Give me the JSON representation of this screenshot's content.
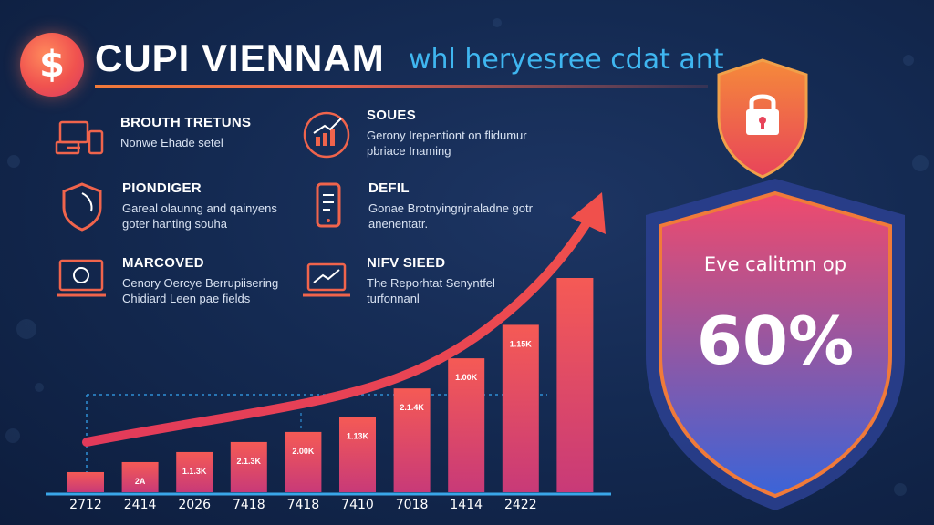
{
  "header": {
    "logo_symbol": "$",
    "logo_icon": "dollar-coin-icon",
    "title": "CUPI VIENNAM",
    "subtitle": "whl heryesree cdat ant"
  },
  "features": [
    {
      "icon": "devices-icon",
      "title": "BROUTH TRETUNS",
      "desc": "Nonwe Ehade setel"
    },
    {
      "icon": "growth-chart-icon",
      "title": "SOUES",
      "desc": "Gerony Irepentiont on flidumur pbriace Inaming"
    },
    {
      "icon": "shield-outline-icon",
      "title": "PIONDIGER",
      "desc": "Gareal olaunng and qainyens goter hanting souha"
    },
    {
      "icon": "mobile-phone-icon",
      "title": "DEFIL",
      "desc": "Gonae Brotnyingnjnaladne gotr anenentatr."
    },
    {
      "icon": "secure-laptop-icon",
      "title": "MARCOVED",
      "desc": "Cenory Oercye Berrupiisering Chidiard Leen pae fields"
    },
    {
      "icon": "laptop-chart-icon",
      "title": "NIFV SIEED",
      "desc": "The Reporhtat Senyntfel turfonnanl"
    }
  ],
  "chart_data": {
    "type": "bar",
    "categories": [
      "2712",
      "2414",
      "2026",
      "7418",
      "7418",
      "7410",
      "7018",
      "1414",
      "2422",
      ""
    ],
    "values": [
      12,
      18,
      24,
      30,
      36,
      45,
      62,
      80,
      100,
      128
    ],
    "bar_labels": [
      "",
      "2A",
      "1.1.3K",
      "2.1.3K",
      "2.00K",
      "1.13K",
      "2.1.4K",
      "1.00K",
      "1.15K",
      ""
    ],
    "trend": "rising",
    "colors": {
      "bar_top": "#f55a55",
      "bar_bottom": "#c83a78",
      "arrow": "#f0504c",
      "axis": "#3aa6e8",
      "guide": "#2f8fd6"
    }
  },
  "shield": {
    "caption": "Eve calitmn op",
    "value": "60%",
    "lock_icon": "padlock-icon",
    "colors": {
      "top": "#f04a6c",
      "bottom": "#3a64d8",
      "border": "#f07a3a"
    }
  }
}
